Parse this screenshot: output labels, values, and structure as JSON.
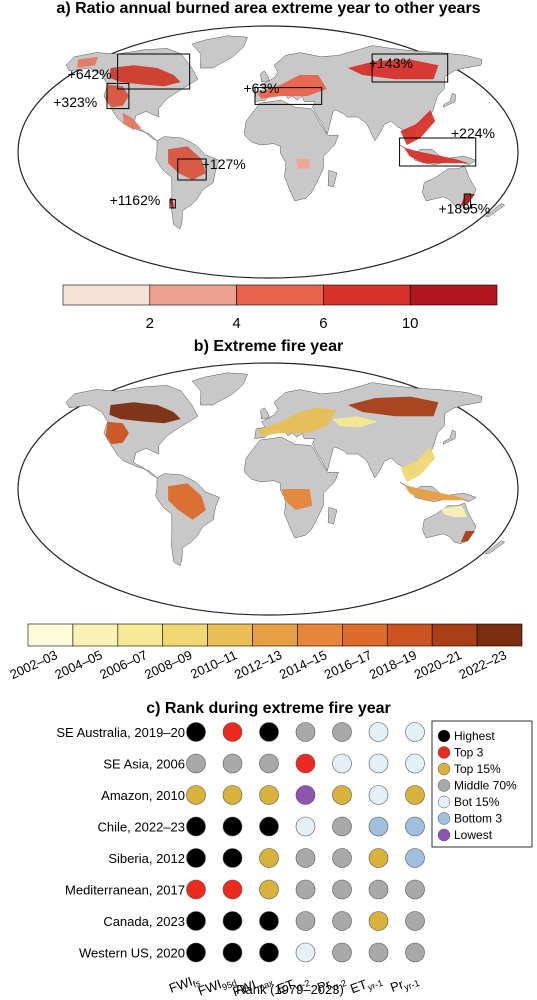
{
  "panel_a": {
    "title": "a) Ratio annual burned area extreme year to other years",
    "annotations": [
      {
        "label": "+642%",
        "lon": -140,
        "lat": 52
      },
      {
        "label": "+323%",
        "lon": -143,
        "lat": 32
      },
      {
        "label": "+63%",
        "lon": -5,
        "lat": 42
      },
      {
        "label": "+143%",
        "lon": 100,
        "lat": 60
      },
      {
        "label": "+127%",
        "lon": -32,
        "lat": -12
      },
      {
        "label": "+224%",
        "lon": 148,
        "lat": 10
      },
      {
        "label": "+1162%",
        "lon": -100,
        "lat": -38
      },
      {
        "label": "+1895%",
        "lon": 150,
        "lat": -44
      }
    ],
    "boxes": [
      {
        "name": "western-us",
        "lon": [
          -125,
          -103
        ],
        "lat": [
          31,
          49
        ]
      },
      {
        "name": "canada",
        "lon": [
          -130,
          -60
        ],
        "lat": [
          45,
          70
        ]
      },
      {
        "name": "mediterranean",
        "lon": [
          -10,
          40
        ],
        "lat": [
          34,
          46
        ]
      },
      {
        "name": "siberia",
        "lon": [
          90,
          140
        ],
        "lat": [
          50,
          70
        ]
      },
      {
        "name": "amazon",
        "lon": [
          -65,
          -45
        ],
        "lat": [
          -20,
          -5
        ]
      },
      {
        "name": "se-asia",
        "lon": [
          95,
          150
        ],
        "lat": [
          -10,
          10
        ]
      },
      {
        "name": "chile",
        "lon": [
          -73,
          -70
        ],
        "lat": [
          -40,
          -34
        ]
      },
      {
        "name": "se-australia",
        "lon": [
          145,
          153
        ],
        "lat": [
          -40,
          -30
        ]
      }
    ],
    "colorbar": {
      "tick_labels": [
        "2",
        "4",
        "6",
        "10"
      ],
      "colors": [
        "#f7e3d6",
        "#eda290",
        "#e9644c",
        "#d8332a",
        "#b0171d"
      ]
    }
  },
  "panel_b": {
    "title": "b) Extreme fire year",
    "colorbar": {
      "tick_labels": [
        "2002–03",
        "2004–05",
        "2006–07",
        "2008–09",
        "2010–11",
        "2012–13",
        "2014–15",
        "2016–17",
        "2018–19",
        "2020–21",
        "2022–23"
      ],
      "colors": [
        "#fdfbd9",
        "#faf2b5",
        "#f6e895",
        "#f0d873",
        "#e8be55",
        "#e79f43",
        "#e6863a",
        "#dd6b2b",
        "#cc5420",
        "#a93f16",
        "#7a2d0f"
      ]
    }
  },
  "chart_data": {
    "type": "table",
    "title": "c) Rank during extreme fire year",
    "xlabel": "Rank (1979–2023)",
    "rows": [
      "SE Australia, 2019–20",
      "SE Asia, 2006",
      "Amazon, 2010",
      "Chile, 2022–23",
      "Siberia, 2012",
      "Mediterranean, 2017",
      "Canada, 2023",
      "Western US, 2020"
    ],
    "columns": [
      {
        "base": "FWI",
        "sub": "fs"
      },
      {
        "base": "FWI",
        "sub": "95d"
      },
      {
        "base": "FWI",
        "sub": "max"
      },
      {
        "base": "ET",
        "sub": "yr-2"
      },
      {
        "base": "Pr",
        "sub": "yr-2"
      },
      {
        "base": "ET",
        "sub": "yr-1"
      },
      {
        "base": "Pr",
        "sub": "yr-1"
      }
    ],
    "categories": [
      "Highest",
      "Top 3",
      "Top 15%",
      "Middle 70%",
      "Bot 15%",
      "Bottom 3",
      "Lowest"
    ],
    "category_colors": [
      "#000000",
      "#ee2a1f",
      "#d9b23b",
      "#a9a9a9",
      "#e4f0f8",
      "#9fbfdc",
      "#8d55b0"
    ],
    "values": [
      [
        0,
        1,
        0,
        3,
        3,
        4,
        4
      ],
      [
        3,
        3,
        3,
        1,
        4,
        4,
        4
      ],
      [
        2,
        2,
        2,
        6,
        2,
        4,
        2
      ],
      [
        0,
        0,
        0,
        4,
        3,
        5,
        5
      ],
      [
        0,
        0,
        2,
        3,
        3,
        2,
        5
      ],
      [
        1,
        1,
        2,
        3,
        3,
        3,
        3
      ],
      [
        0,
        0,
        0,
        3,
        3,
        2,
        3
      ],
      [
        0,
        0,
        0,
        4,
        3,
        3,
        3
      ]
    ]
  }
}
